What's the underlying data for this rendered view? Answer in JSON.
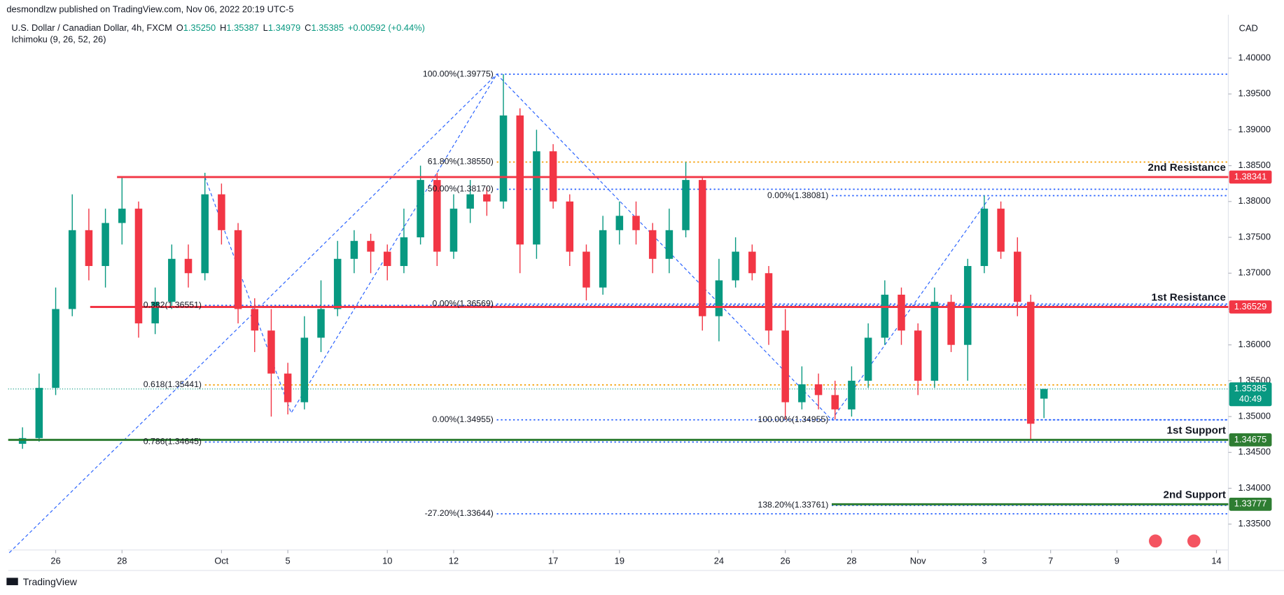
{
  "header": {
    "publisher": "desmondlzw published on TradingView.com, Nov 06, 2022 20:19 UTC-5",
    "symbol": "U.S. Dollar / Canadian Dollar, 4h, FXCM",
    "quote": [
      {
        "key": "O",
        "value": "1.35250"
      },
      {
        "key": "H",
        "value": "1.35387"
      },
      {
        "key": "L",
        "value": "1.34979"
      },
      {
        "key": "C",
        "value": "1.35385"
      }
    ],
    "change": "+0.00592 (+0.44%)",
    "indicator": "Ichimoku (9, 26, 52, 26)",
    "currency": "CAD"
  },
  "footer": {
    "brand": "TradingView"
  },
  "chart_data": {
    "type": "candlestick",
    "up_color": "#089981",
    "down_color": "#f23645",
    "xlim": [
      -1.432,
      35.358
    ],
    "ylim": [
      1.33139,
      1.40605
    ],
    "xticks": [
      {
        "value": 0,
        "label": "26"
      },
      {
        "value": 2,
        "label": "28"
      },
      {
        "value": 5,
        "label": "Oct"
      },
      {
        "value": 7,
        "label": "5"
      },
      {
        "value": 10,
        "label": "10"
      },
      {
        "value": 12,
        "label": "12"
      },
      {
        "value": 15,
        "label": "17"
      },
      {
        "value": 17,
        "label": "19"
      },
      {
        "value": 20,
        "label": "24"
      },
      {
        "value": 22,
        "label": "26"
      },
      {
        "value": 24,
        "label": "28"
      },
      {
        "value": 26,
        "label": "Nov"
      },
      {
        "value": 28,
        "label": "3"
      },
      {
        "value": 30,
        "label": "7"
      },
      {
        "value": 32,
        "label": "9"
      },
      {
        "value": 35,
        "label": "14"
      }
    ],
    "yticks": [
      {
        "value": 1.335,
        "label": "1.33500"
      },
      {
        "value": 1.34,
        "label": "1.34000"
      },
      {
        "value": 1.345,
        "label": "1.34500"
      },
      {
        "value": 1.35,
        "label": "1.35000"
      },
      {
        "value": 1.355,
        "label": "1.35500"
      },
      {
        "value": 1.36,
        "label": "1.36000"
      },
      {
        "value": 1.365,
        "label": "1.36500"
      },
      {
        "value": 1.37,
        "label": "1.37000"
      },
      {
        "value": 1.375,
        "label": "1.37500"
      },
      {
        "value": 1.38,
        "label": "1.38000"
      },
      {
        "value": 1.385,
        "label": "1.38500"
      },
      {
        "value": 1.39,
        "label": "1.39000"
      },
      {
        "value": 1.395,
        "label": "1.39500"
      },
      {
        "value": 1.4,
        "label": "1.40000"
      }
    ],
    "candles": [
      {
        "x": -1,
        "o": 1.3462,
        "h": 1.3485,
        "l": 1.3455,
        "c": 1.347
      },
      {
        "x": -0.5,
        "o": 1.347,
        "h": 1.356,
        "l": 1.3465,
        "c": 1.354
      },
      {
        "x": 0,
        "o": 1.354,
        "h": 1.368,
        "l": 1.353,
        "c": 1.365
      },
      {
        "x": 0.5,
        "o": 1.365,
        "h": 1.381,
        "l": 1.364,
        "c": 1.376
      },
      {
        "x": 1,
        "o": 1.376,
        "h": 1.379,
        "l": 1.369,
        "c": 1.371
      },
      {
        "x": 1.5,
        "o": 1.371,
        "h": 1.379,
        "l": 1.368,
        "c": 1.377
      },
      {
        "x": 2,
        "o": 1.377,
        "h": 1.3834,
        "l": 1.374,
        "c": 1.379
      },
      {
        "x": 2.5,
        "o": 1.379,
        "h": 1.38,
        "l": 1.361,
        "c": 1.363
      },
      {
        "x": 3,
        "o": 1.363,
        "h": 1.368,
        "l": 1.3615,
        "c": 1.366
      },
      {
        "x": 3.5,
        "o": 1.366,
        "h": 1.374,
        "l": 1.365,
        "c": 1.372
      },
      {
        "x": 4,
        "o": 1.372,
        "h": 1.374,
        "l": 1.368,
        "c": 1.37
      },
      {
        "x": 4.5,
        "o": 1.37,
        "h": 1.384,
        "l": 1.369,
        "c": 1.381
      },
      {
        "x": 5,
        "o": 1.381,
        "h": 1.3825,
        "l": 1.374,
        "c": 1.376
      },
      {
        "x": 5.5,
        "o": 1.376,
        "h": 1.377,
        "l": 1.363,
        "c": 1.365
      },
      {
        "x": 6,
        "o": 1.365,
        "h": 1.3665,
        "l": 1.359,
        "c": 1.362
      },
      {
        "x": 6.5,
        "o": 1.362,
        "h": 1.365,
        "l": 1.35,
        "c": 1.356
      },
      {
        "x": 7,
        "o": 1.356,
        "h": 1.3575,
        "l": 1.3503,
        "c": 1.352
      },
      {
        "x": 7.5,
        "o": 1.352,
        "h": 1.364,
        "l": 1.351,
        "c": 1.361
      },
      {
        "x": 8,
        "o": 1.361,
        "h": 1.369,
        "l": 1.359,
        "c": 1.365
      },
      {
        "x": 8.5,
        "o": 1.365,
        "h": 1.3745,
        "l": 1.364,
        "c": 1.372
      },
      {
        "x": 9,
        "o": 1.372,
        "h": 1.376,
        "l": 1.37,
        "c": 1.3745
      },
      {
        "x": 9.5,
        "o": 1.3745,
        "h": 1.3755,
        "l": 1.37,
        "c": 1.373
      },
      {
        "x": 10,
        "o": 1.373,
        "h": 1.374,
        "l": 1.369,
        "c": 1.371
      },
      {
        "x": 10.5,
        "o": 1.371,
        "h": 1.379,
        "l": 1.37,
        "c": 1.375
      },
      {
        "x": 11,
        "o": 1.375,
        "h": 1.385,
        "l": 1.374,
        "c": 1.383
      },
      {
        "x": 11.5,
        "o": 1.383,
        "h": 1.384,
        "l": 1.371,
        "c": 1.373
      },
      {
        "x": 12,
        "o": 1.373,
        "h": 1.381,
        "l": 1.372,
        "c": 1.379
      },
      {
        "x": 12.5,
        "o": 1.379,
        "h": 1.383,
        "l": 1.377,
        "c": 1.381
      },
      {
        "x": 13,
        "o": 1.381,
        "h": 1.382,
        "l": 1.378,
        "c": 1.38
      },
      {
        "x": 13.5,
        "o": 1.38,
        "h": 1.39775,
        "l": 1.379,
        "c": 1.392
      },
      {
        "x": 14,
        "o": 1.392,
        "h": 1.393,
        "l": 1.37,
        "c": 1.374
      },
      {
        "x": 14.5,
        "o": 1.374,
        "h": 1.39,
        "l": 1.372,
        "c": 1.387
      },
      {
        "x": 15,
        "o": 1.387,
        "h": 1.388,
        "l": 1.379,
        "c": 1.38
      },
      {
        "x": 15.5,
        "o": 1.38,
        "h": 1.381,
        "l": 1.371,
        "c": 1.373
      },
      {
        "x": 16,
        "o": 1.373,
        "h": 1.374,
        "l": 1.3662,
        "c": 1.368
      },
      {
        "x": 16.5,
        "o": 1.368,
        "h": 1.378,
        "l": 1.367,
        "c": 1.376
      },
      {
        "x": 17,
        "o": 1.376,
        "h": 1.38,
        "l": 1.374,
        "c": 1.378
      },
      {
        "x": 17.5,
        "o": 1.378,
        "h": 1.38,
        "l": 1.374,
        "c": 1.376
      },
      {
        "x": 18,
        "o": 1.376,
        "h": 1.377,
        "l": 1.37,
        "c": 1.372
      },
      {
        "x": 18.5,
        "o": 1.372,
        "h": 1.379,
        "l": 1.37,
        "c": 1.376
      },
      {
        "x": 19,
        "o": 1.376,
        "h": 1.3855,
        "l": 1.375,
        "c": 1.383
      },
      {
        "x": 19.5,
        "o": 1.383,
        "h": 1.3835,
        "l": 1.362,
        "c": 1.364
      },
      {
        "x": 20,
        "o": 1.364,
        "h": 1.372,
        "l": 1.3605,
        "c": 1.369
      },
      {
        "x": 20.5,
        "o": 1.369,
        "h": 1.375,
        "l": 1.368,
        "c": 1.373
      },
      {
        "x": 21,
        "o": 1.373,
        "h": 1.374,
        "l": 1.369,
        "c": 1.37
      },
      {
        "x": 21.5,
        "o": 1.37,
        "h": 1.371,
        "l": 1.36,
        "c": 1.362
      },
      {
        "x": 22,
        "o": 1.362,
        "h": 1.365,
        "l": 1.34955,
        "c": 1.352
      },
      {
        "x": 22.5,
        "o": 1.352,
        "h": 1.357,
        "l": 1.351,
        "c": 1.3545
      },
      {
        "x": 23,
        "o": 1.3545,
        "h": 1.356,
        "l": 1.351,
        "c": 1.353
      },
      {
        "x": 23.5,
        "o": 1.353,
        "h": 1.355,
        "l": 1.3496,
        "c": 1.351
      },
      {
        "x": 24,
        "o": 1.351,
        "h": 1.357,
        "l": 1.35,
        "c": 1.355
      },
      {
        "x": 24.5,
        "o": 1.355,
        "h": 1.363,
        "l": 1.354,
        "c": 1.361
      },
      {
        "x": 25,
        "o": 1.361,
        "h": 1.369,
        "l": 1.36,
        "c": 1.367
      },
      {
        "x": 25.5,
        "o": 1.367,
        "h": 1.368,
        "l": 1.36,
        "c": 1.362
      },
      {
        "x": 26,
        "o": 1.362,
        "h": 1.363,
        "l": 1.353,
        "c": 1.355
      },
      {
        "x": 26.5,
        "o": 1.355,
        "h": 1.368,
        "l": 1.354,
        "c": 1.366
      },
      {
        "x": 27,
        "o": 1.366,
        "h": 1.367,
        "l": 1.359,
        "c": 1.36
      },
      {
        "x": 27.5,
        "o": 1.36,
        "h": 1.372,
        "l": 1.355,
        "c": 1.371
      },
      {
        "x": 28,
        "o": 1.371,
        "h": 1.38081,
        "l": 1.37,
        "c": 1.379
      },
      {
        "x": 28.5,
        "o": 1.379,
        "h": 1.38,
        "l": 1.372,
        "c": 1.373
      },
      {
        "x": 29,
        "o": 1.373,
        "h": 1.375,
        "l": 1.364,
        "c": 1.366
      },
      {
        "x": 29.4,
        "o": 1.366,
        "h": 1.367,
        "l": 1.3467,
        "c": 1.349
      },
      {
        "x": 29.8,
        "o": 1.3525,
        "h": 1.35387,
        "l": 1.34979,
        "c": 1.35385
      }
    ],
    "fibs": [
      {
        "value": 1.39775,
        "label": "100.00%(1.39775)",
        "x0": 13.3,
        "color": "#2962ff"
      },
      {
        "value": 1.3855,
        "label": "61.80%(1.38550)",
        "x0": 13.3,
        "color": "#f59d00"
      },
      {
        "value": 1.3817,
        "label": "50.00%(1.38170)",
        "x0": 13.3,
        "color": "#2962ff"
      },
      {
        "value": 1.38081,
        "label": "0.00%(1.38081)",
        "x0": 23.4,
        "color": "#2962ff"
      },
      {
        "value": 1.36551,
        "label": "0.382(1.36551)",
        "x0": 4.5,
        "color": "#2962ff"
      },
      {
        "value": 1.36569,
        "label": "0.00%(1.36569)",
        "x0": 13.3,
        "color": "#2962ff"
      },
      {
        "value": 1.35441,
        "label": "0.618(1.35441)",
        "x0": 4.5,
        "color": "#f59d00"
      },
      {
        "value": 1.34955,
        "label": "0.00%(1.34955)",
        "x0": 13.3,
        "color": "#2962ff"
      },
      {
        "value": 1.34955,
        "label": "100.00%(1.34955)",
        "x0": 23.4,
        "color": "#2962ff"
      },
      {
        "value": 1.34645,
        "label": "0.786(1.34645)",
        "x0": 4.5,
        "color": "#2962ff"
      },
      {
        "value": 1.33761,
        "label": "138.20%(1.33761)",
        "x0": 23.4,
        "color": "#2962ff"
      },
      {
        "value": 1.33644,
        "label": "-27.20%(1.33644)",
        "x0": 13.3,
        "color": "#2962ff"
      }
    ],
    "levels": [
      {
        "name": "2nd Resistance",
        "value": 1.38341,
        "value_label": "1.38341",
        "x0": 1.85,
        "color": "#f23645"
      },
      {
        "name": "1st Resistance",
        "value": 1.36529,
        "value_label": "1.36529",
        "x0": 1.04,
        "color": "#f23645"
      },
      {
        "name": "1st Support",
        "value": 1.34675,
        "value_label": "1.34675",
        "x0": -1.432,
        "color": "#2e7d32"
      },
      {
        "name": "2nd Support",
        "value": 1.33777,
        "value_label": "1.33777",
        "x0": 23.4,
        "color": "#2e7d32"
      }
    ],
    "last_price": {
      "value": 1.35385,
      "label": "1.35385",
      "countdown": "40:49",
      "color": "#089981"
    },
    "drawings": [
      {
        "points": [
          [
            -1.4,
            1.331
          ],
          [
            13.3,
            1.39775
          ]
        ]
      },
      {
        "points": [
          [
            4.5,
            1.38341
          ],
          [
            7.1,
            1.3505
          ],
          [
            13.3,
            1.39775
          ],
          [
            23.4,
            1.34955
          ],
          [
            28.2,
            1.38081
          ]
        ]
      }
    ]
  }
}
